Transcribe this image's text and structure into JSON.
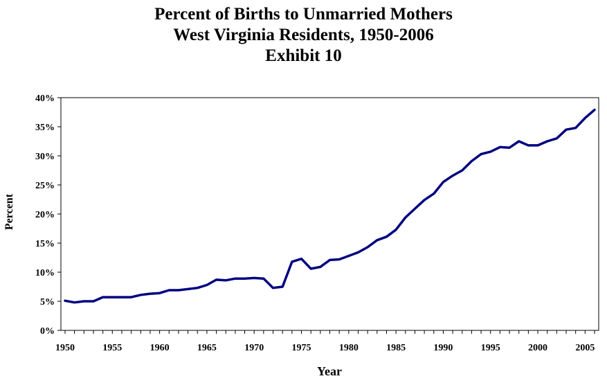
{
  "chart_data": {
    "type": "line",
    "title": "Percent of Births to Unmarried Mothers",
    "subtitle": "West Virginia Residents, 1950-2006",
    "subtitle2": "Exhibit 10",
    "xlabel": "Year",
    "ylabel": "Percent",
    "xlim": [
      1950,
      2006
    ],
    "ylim": [
      0,
      40
    ],
    "x_ticks": [
      "1950",
      "1955",
      "1960",
      "1965",
      "1970",
      "1975",
      "1980",
      "1985",
      "1990",
      "1995",
      "2000",
      "2005"
    ],
    "y_ticks": [
      "0%",
      "5%",
      "10%",
      "15%",
      "20%",
      "25%",
      "30%",
      "35%",
      "40%"
    ],
    "grid": false,
    "line_color": "#000080",
    "series": [
      {
        "x": [
          1950,
          1951,
          1952,
          1953,
          1954,
          1955,
          1956,
          1957,
          1958,
          1959,
          1960,
          1961,
          1962,
          1963,
          1964,
          1965,
          1966,
          1967,
          1968,
          1969,
          1970,
          1971,
          1972,
          1973,
          1974,
          1975,
          1976,
          1977,
          1978,
          1979,
          1980,
          1981,
          1982,
          1983,
          1984,
          1985,
          1986,
          1987,
          1988,
          1989,
          1990,
          1991,
          1992,
          1993,
          1994,
          1995,
          1996,
          1997,
          1998,
          1999,
          2000,
          2001,
          2002,
          2003,
          2004,
          2005,
          2006
        ],
        "values": [
          5.1,
          4.8,
          5.0,
          5.0,
          5.7,
          5.7,
          5.7,
          5.7,
          6.1,
          6.3,
          6.4,
          6.9,
          6.9,
          7.1,
          7.3,
          7.8,
          8.7,
          8.6,
          8.9,
          8.9,
          9.0,
          8.9,
          7.3,
          7.5,
          11.8,
          12.3,
          10.6,
          10.9,
          12.1,
          12.2,
          12.8,
          13.4,
          14.3,
          15.5,
          16.1,
          17.3,
          19.4,
          20.9,
          22.4,
          23.5,
          25.5,
          26.6,
          27.5,
          29.1,
          30.3,
          30.7,
          31.5,
          31.4,
          32.5,
          31.8,
          31.8,
          32.5,
          33.0,
          34.5,
          34.8,
          36.5,
          37.9
        ]
      }
    ]
  }
}
